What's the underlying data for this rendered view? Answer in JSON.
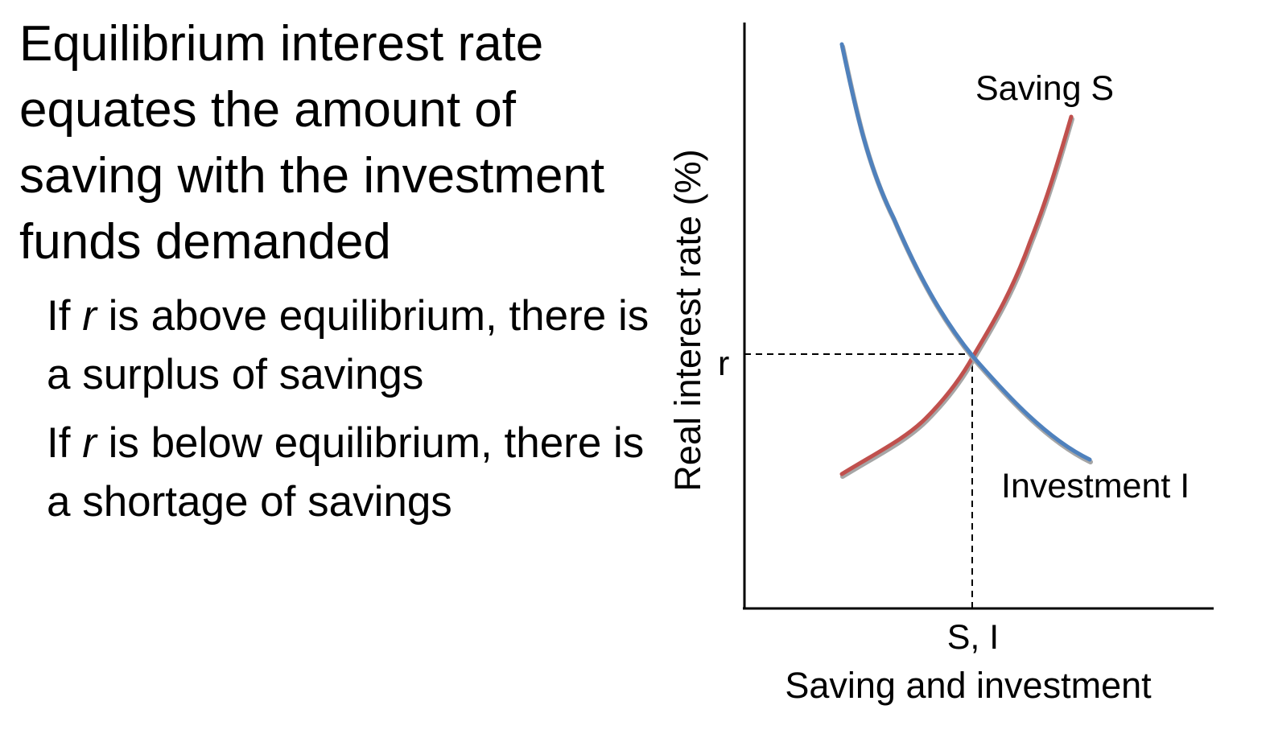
{
  "text": {
    "main_point": "Equilibrium interest rate equates the amount of saving with the investment funds demanded",
    "sub_points": [
      {
        "prefix": "If ",
        "variable": "r",
        "suffix": " is above equilibrium, there is a surplus of savings"
      },
      {
        "prefix": "If ",
        "variable": "r",
        "suffix": " is below equilibrium, there is a shortage of savings"
      }
    ]
  },
  "diagram": {
    "y_axis_label": "Real interest rate (%)",
    "x_axis_label": "Saving and investment",
    "equilibrium_rate_label": "r",
    "equilibrium_quantity_label": "S, I",
    "saving_curve": {
      "label": "Saving S",
      "color": "#c0504d"
    },
    "investment_curve": {
      "label": "Investment I",
      "color": "#4f81bd"
    }
  }
}
